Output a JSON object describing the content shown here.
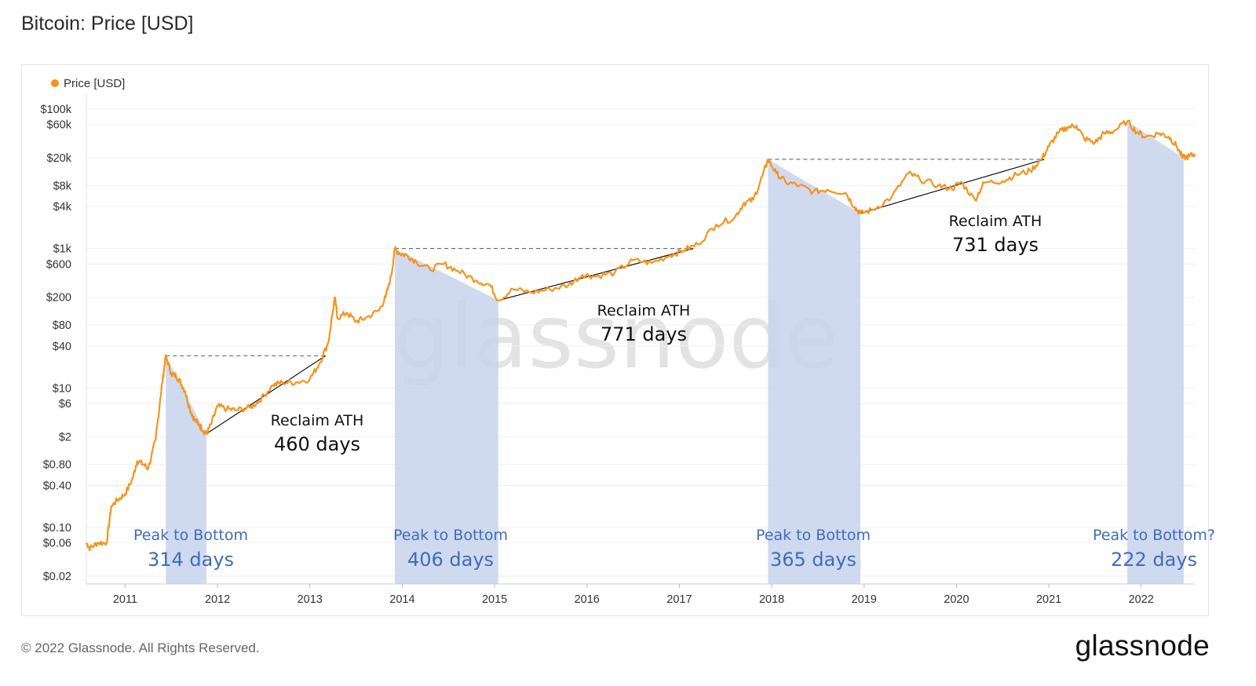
{
  "page": {
    "title": "Bitcoin: Price [USD]",
    "copyright": "© 2022 Glassnode. All Rights Reserved.",
    "logo_text": "glassnode"
  },
  "chart_data": {
    "type": "line",
    "title": "Bitcoin: Price [USD]",
    "yscale": "log",
    "legend": {
      "placement": "top-left",
      "entries": [
        "Price [USD]"
      ]
    },
    "watermark": "glassnode",
    "colors": {
      "price": "#f7931a",
      "shade": "#c7d4ec",
      "blue_text": "#3e6cbf"
    },
    "xlim": [
      2010.58,
      2022.58
    ],
    "ylim": [
      0.02,
      100000
    ],
    "x_ticks": [
      "2011",
      "2012",
      "2013",
      "2014",
      "2015",
      "2016",
      "2017",
      "2018",
      "2019",
      "2020",
      "2021",
      "2022"
    ],
    "y_ticks": [
      {
        "label": "$100k",
        "value": 100000
      },
      {
        "label": "$60k",
        "value": 60000
      },
      {
        "label": "$20k",
        "value": 20000
      },
      {
        "label": "$8k",
        "value": 8000
      },
      {
        "label": "$4k",
        "value": 4000
      },
      {
        "label": "$1k",
        "value": 1000
      },
      {
        "label": "$600",
        "value": 600
      },
      {
        "label": "$200",
        "value": 200
      },
      {
        "label": "$80",
        "value": 80
      },
      {
        "label": "$40",
        "value": 40
      },
      {
        "label": "$10",
        "value": 10
      },
      {
        "label": "$6",
        "value": 6
      },
      {
        "label": "$2",
        "value": 2
      },
      {
        "label": "$0.80",
        "value": 0.8
      },
      {
        "label": "$0.40",
        "value": 0.4
      },
      {
        "label": "$0.10",
        "value": 0.1
      },
      {
        "label": "$0.06",
        "value": 0.06
      },
      {
        "label": "$0.02",
        "value": 0.02
      }
    ],
    "series": [
      {
        "name": "Price [USD]",
        "points": [
          [
            2010.58,
            0.06
          ],
          [
            2010.62,
            0.05
          ],
          [
            2010.7,
            0.06
          ],
          [
            2010.8,
            0.06
          ],
          [
            2010.85,
            0.2
          ],
          [
            2010.92,
            0.25
          ],
          [
            2011.0,
            0.3
          ],
          [
            2011.08,
            0.5
          ],
          [
            2011.13,
            0.9
          ],
          [
            2011.2,
            0.8
          ],
          [
            2011.25,
            0.7
          ],
          [
            2011.33,
            1.8
          ],
          [
            2011.38,
            7
          ],
          [
            2011.42,
            18
          ],
          [
            2011.44,
            29
          ],
          [
            2011.5,
            16
          ],
          [
            2011.55,
            15
          ],
          [
            2011.6,
            12
          ],
          [
            2011.65,
            9
          ],
          [
            2011.7,
            5
          ],
          [
            2011.75,
            3.5
          ],
          [
            2011.8,
            3
          ],
          [
            2011.85,
            2.4
          ],
          [
            2011.88,
            2.2
          ],
          [
            2011.93,
            3
          ],
          [
            2012.0,
            5.5
          ],
          [
            2012.1,
            5
          ],
          [
            2012.2,
            4.8
          ],
          [
            2012.35,
            5.2
          ],
          [
            2012.45,
            6.5
          ],
          [
            2012.6,
            11
          ],
          [
            2012.7,
            12
          ],
          [
            2012.85,
            12
          ],
          [
            2013.0,
            13.5
          ],
          [
            2013.1,
            22
          ],
          [
            2013.2,
            45
          ],
          [
            2013.27,
            200
          ],
          [
            2013.3,
            100
          ],
          [
            2013.4,
            120
          ],
          [
            2013.5,
            90
          ],
          [
            2013.6,
            100
          ],
          [
            2013.75,
            130
          ],
          [
            2013.82,
            200
          ],
          [
            2013.88,
            400
          ],
          [
            2013.92,
            1000
          ],
          [
            2013.97,
            850
          ],
          [
            2014.05,
            800
          ],
          [
            2014.15,
            650
          ],
          [
            2014.3,
            500
          ],
          [
            2014.45,
            600
          ],
          [
            2014.6,
            480
          ],
          [
            2014.8,
            350
          ],
          [
            2014.95,
            300
          ],
          [
            2015.04,
            180
          ],
          [
            2015.2,
            260
          ],
          [
            2015.4,
            235
          ],
          [
            2015.6,
            260
          ],
          [
            2015.8,
            300
          ],
          [
            2015.95,
            420
          ],
          [
            2016.1,
            400
          ],
          [
            2016.3,
            450
          ],
          [
            2016.5,
            680
          ],
          [
            2016.7,
            620
          ],
          [
            2016.9,
            800
          ],
          [
            2017.05,
            950
          ],
          [
            2017.2,
            1150
          ],
          [
            2017.4,
            2200
          ],
          [
            2017.6,
            2800
          ],
          [
            2017.7,
            4500
          ],
          [
            2017.8,
            5000
          ],
          [
            2017.9,
            11000
          ],
          [
            2017.96,
            19000
          ],
          [
            2018.05,
            12000
          ],
          [
            2018.15,
            9000
          ],
          [
            2018.3,
            8000
          ],
          [
            2018.45,
            6500
          ],
          [
            2018.6,
            7000
          ],
          [
            2018.8,
            6300
          ],
          [
            2018.9,
            3900
          ],
          [
            2018.96,
            3200
          ],
          [
            2019.1,
            3600
          ],
          [
            2019.3,
            5500
          ],
          [
            2019.48,
            12000
          ],
          [
            2019.6,
            10000
          ],
          [
            2019.8,
            8000
          ],
          [
            2019.95,
            7200
          ],
          [
            2020.05,
            9000
          ],
          [
            2020.2,
            5000
          ],
          [
            2020.3,
            8800
          ],
          [
            2020.5,
            9300
          ],
          [
            2020.65,
            11500
          ],
          [
            2020.8,
            13000
          ],
          [
            2020.92,
            19000
          ],
          [
            2021.0,
            29000
          ],
          [
            2021.1,
            45000
          ],
          [
            2021.2,
            55000
          ],
          [
            2021.3,
            58000
          ],
          [
            2021.38,
            38000
          ],
          [
            2021.5,
            33000
          ],
          [
            2021.6,
            45000
          ],
          [
            2021.7,
            48000
          ],
          [
            2021.85,
            67000
          ],
          [
            2021.95,
            47000
          ],
          [
            2022.05,
            40000
          ],
          [
            2022.2,
            45000
          ],
          [
            2022.3,
            40000
          ],
          [
            2022.38,
            30000
          ],
          [
            2022.45,
            20000
          ],
          [
            2022.52,
            21000
          ],
          [
            2022.58,
            23000
          ]
        ]
      }
    ],
    "peak_to_bottom": [
      {
        "x_start": 2011.44,
        "x_end": 2011.88,
        "peak": 29,
        "bottom": 2.2,
        "line1": "Peak to Bottom",
        "line2": "314 days"
      },
      {
        "x_start": 2013.92,
        "x_end": 2015.04,
        "peak": 1000,
        "bottom": 180,
        "line1": "Peak to Bottom",
        "line2": "406 days"
      },
      {
        "x_start": 2017.96,
        "x_end": 2018.96,
        "peak": 19000,
        "bottom": 3200,
        "line1": "Peak to Bottom",
        "line2": "365 days"
      },
      {
        "x_start": 2021.85,
        "x_end": 2022.46,
        "peak": 67000,
        "bottom": 20000,
        "line1": "Peak to Bottom?",
        "line2": "222 days"
      }
    ],
    "reclaim_ath": [
      {
        "bottom_x": 2011.88,
        "bottom_y": 2.2,
        "peak_x": 2011.44,
        "reclaim_x": 2013.17,
        "level": 29,
        "line1": "Reclaim ATH",
        "line2": "460 days"
      },
      {
        "bottom_x": 2015.04,
        "bottom_y": 180,
        "peak_x": 2013.92,
        "reclaim_x": 2017.15,
        "level": 1000,
        "line1": "Reclaim ATH",
        "line2": "771 days"
      },
      {
        "bottom_x": 2018.96,
        "bottom_y": 3200,
        "peak_x": 2017.96,
        "reclaim_x": 2020.95,
        "level": 19000,
        "line1": "Reclaim ATH",
        "line2": "731 days"
      }
    ]
  }
}
